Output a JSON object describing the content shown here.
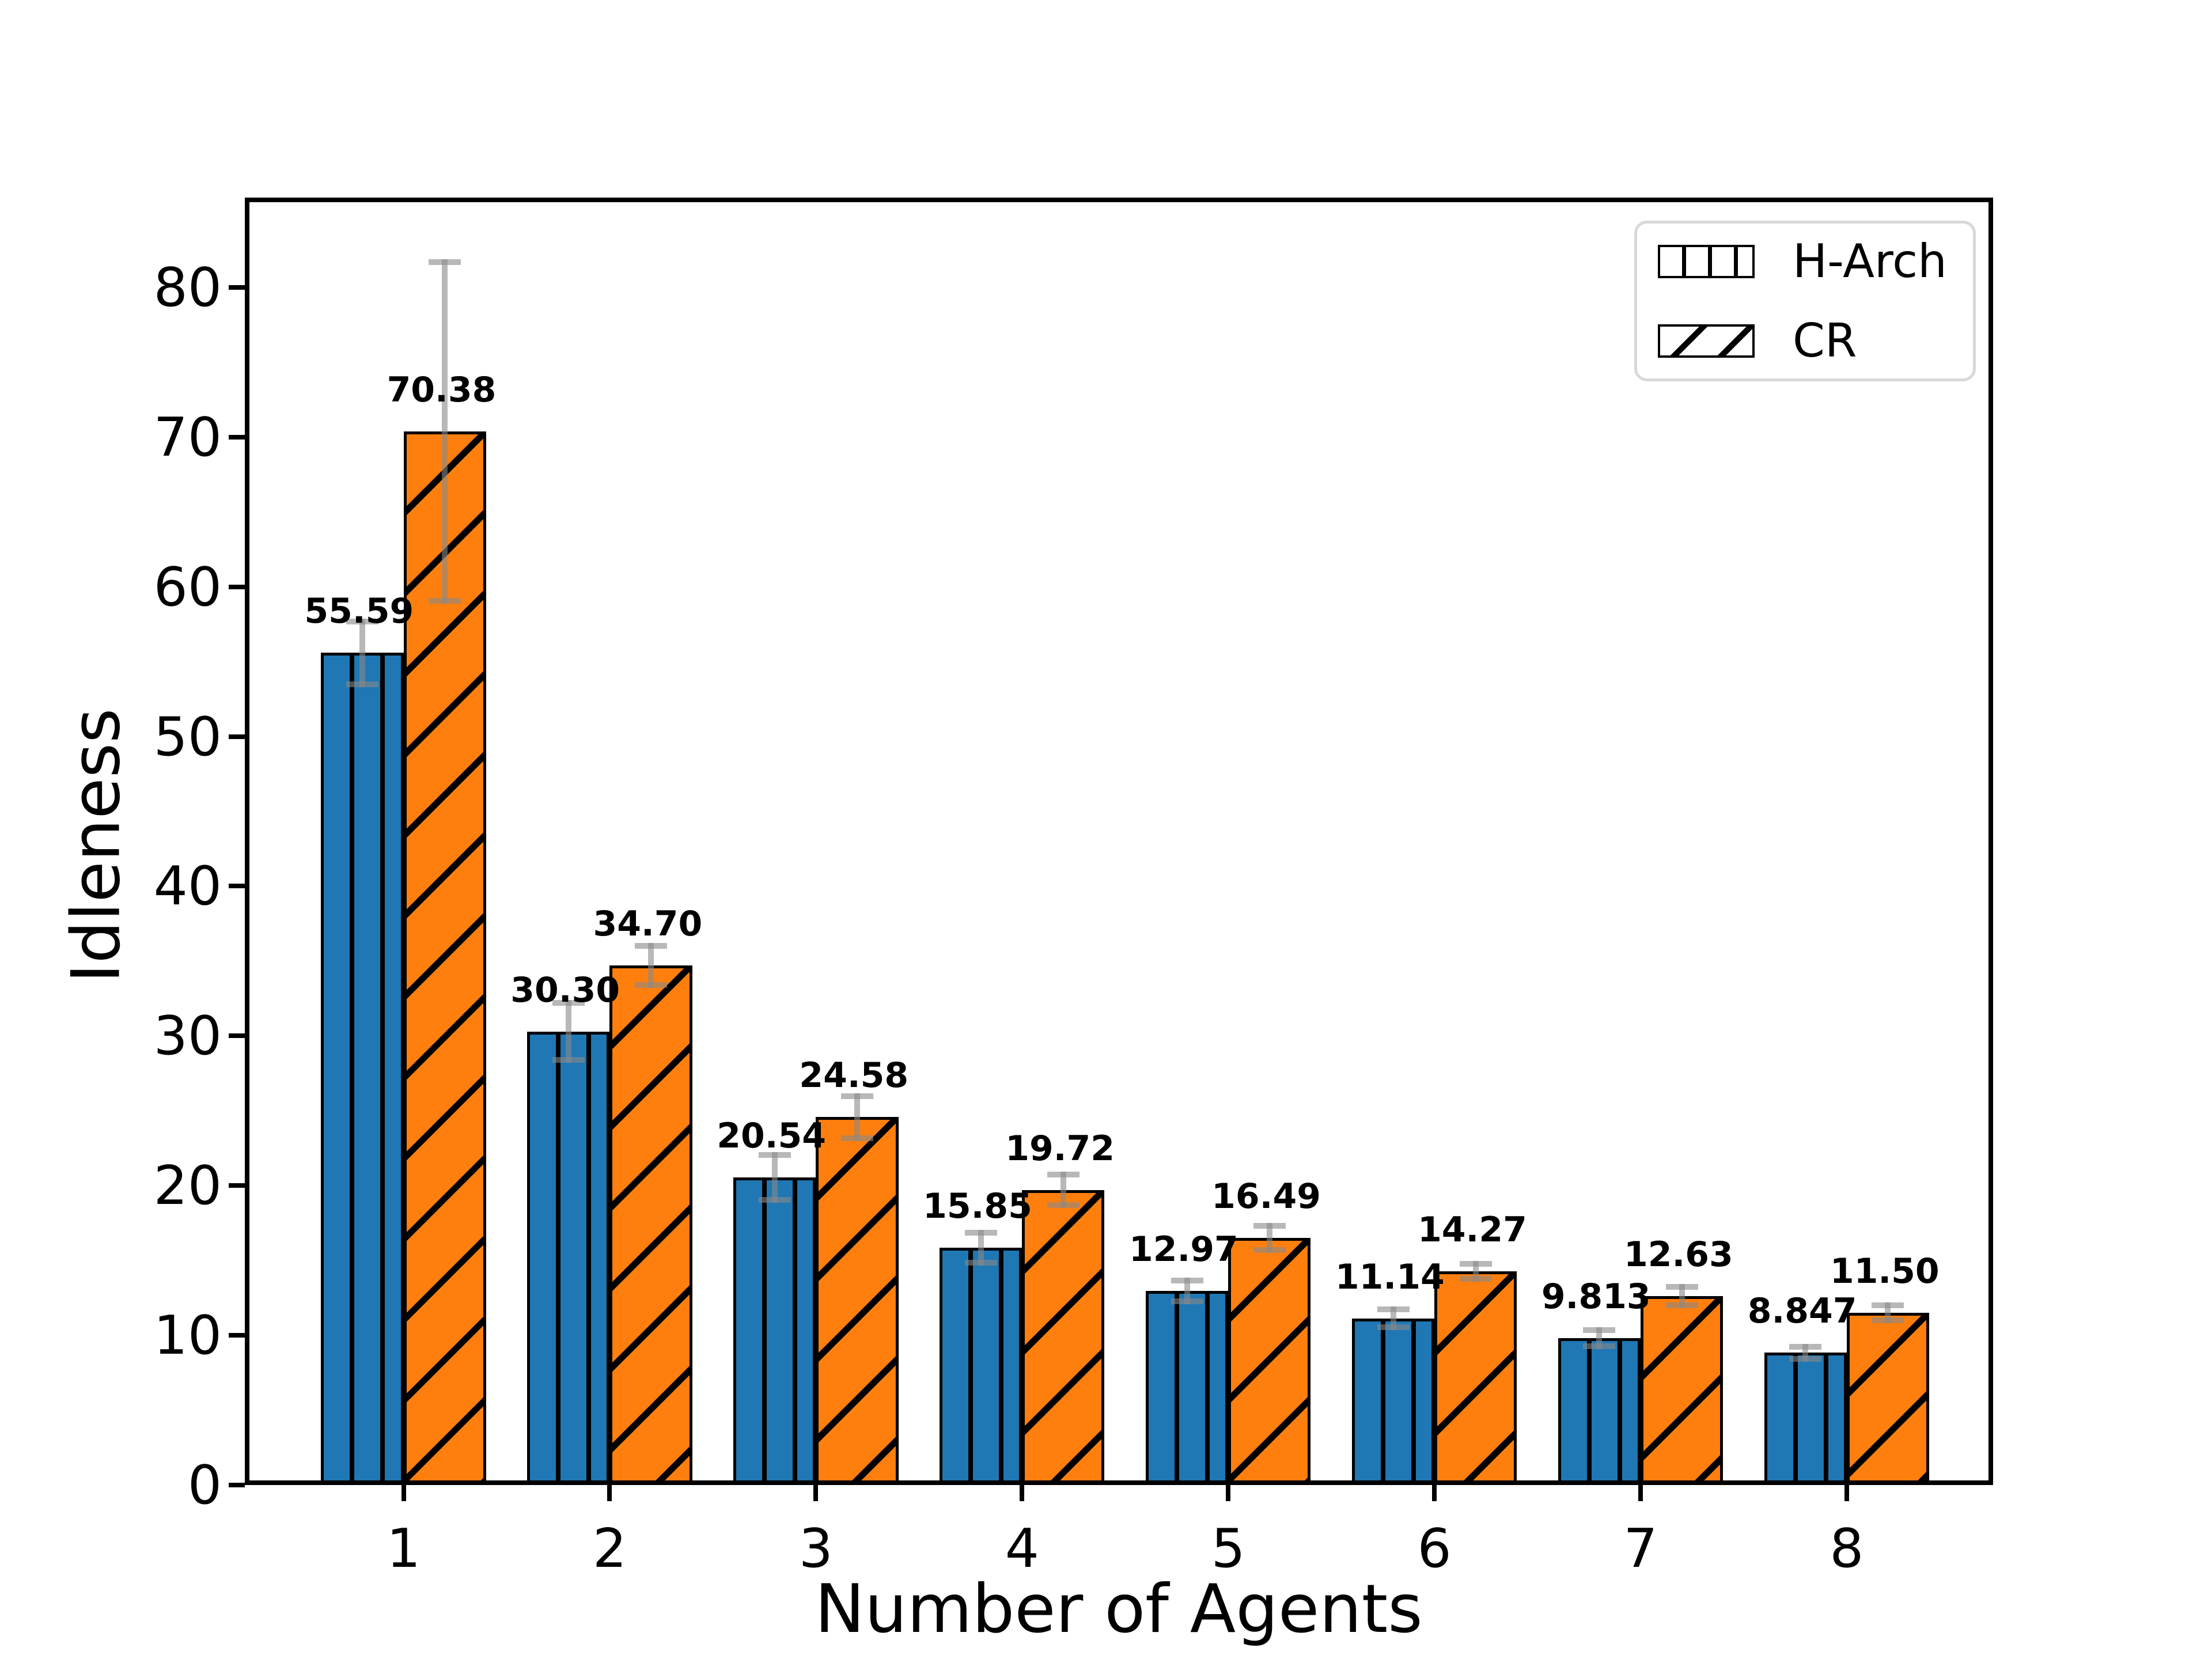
{
  "chart_data": {
    "type": "bar",
    "title": "",
    "xlabel": "Number of Agents",
    "ylabel": "Idleness",
    "categories": [
      "1",
      "2",
      "3",
      "4",
      "5",
      "6",
      "7",
      "8"
    ],
    "series": [
      {
        "name": "H-Arch",
        "color": "#1f77b4",
        "hatch": "|",
        "values": [
          55.59,
          30.3,
          20.54,
          15.85,
          12.97,
          11.14,
          9.813,
          8.847
        ],
        "errors": [
          2.3,
          2.1,
          1.7,
          1.2,
          0.9,
          0.8,
          0.75,
          0.6
        ],
        "labels": [
          "55.59",
          "30.30",
          "20.54",
          "15.85",
          "12.97",
          "11.14",
          "9.813",
          "8.847"
        ]
      },
      {
        "name": "CR",
        "color": "#ff7f0e",
        "hatch": "/",
        "values": [
          70.38,
          34.7,
          24.58,
          19.72,
          16.49,
          14.27,
          12.63,
          11.5
        ],
        "errors": [
          11.5,
          1.5,
          1.6,
          1.2,
          1.0,
          0.7,
          0.8,
          0.7
        ],
        "labels": [
          "70.38",
          "34.70",
          "24.58",
          "19.72",
          "16.49",
          "14.27",
          "12.63",
          "11.50"
        ]
      }
    ],
    "ylim": [
      0,
      86
    ],
    "yticks": [
      0,
      10,
      20,
      30,
      40,
      50,
      60,
      70,
      80
    ],
    "bar_width_units": 0.4,
    "xlim": [
      0.23,
      8.71
    ],
    "grid": false,
    "legend_position": "upper right",
    "error_bar_color": "rgba(137,137,137,0.6)",
    "bar_edge_color": "#000000"
  }
}
